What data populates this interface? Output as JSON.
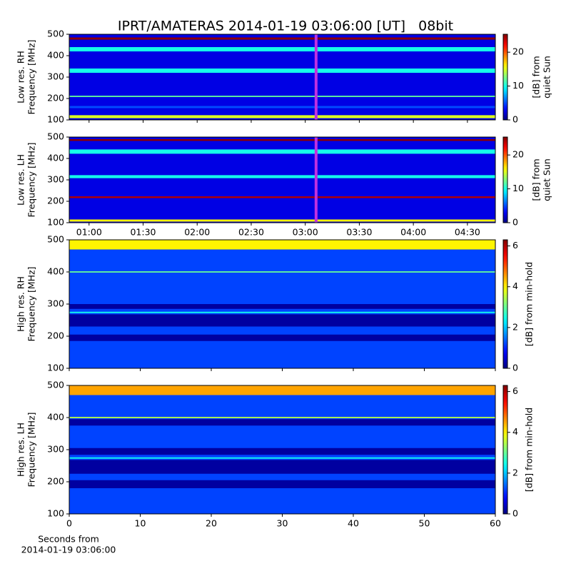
{
  "chart_data": [
    {
      "type": "heatmap",
      "title": "IPRT/AMATERAS 2014-01-19 03:06:00 [UT]   08bit",
      "ylabel": [
        "Low res. RH",
        "Frequency [MHz]"
      ],
      "ylim": [
        100,
        500
      ],
      "yticks": [
        100,
        200,
        300,
        400,
        500
      ],
      "xlim": [
        49,
        285.5
      ],
      "xticks": [
        60,
        90,
        120,
        150,
        180,
        210,
        240,
        270
      ],
      "xtick_labels": false,
      "marker_x": 186,
      "marker_color": "#c030e0",
      "background_level": 2.5,
      "bands": [
        {
          "from": 475,
          "to": 485,
          "level": 25
        },
        {
          "from": 420,
          "to": 440,
          "level": 10
        },
        {
          "from": 320,
          "to": 340,
          "level": 10
        },
        {
          "from": 207,
          "to": 213,
          "level": 12
        },
        {
          "from": 155,
          "to": 165,
          "level": 5
        },
        {
          "from": 108,
          "to": 122,
          "level": 15
        }
      ],
      "clim": [
        0,
        25.3
      ],
      "cticks": [
        0,
        10,
        20
      ],
      "clabel": [
        "[dB] from",
        "quiet Sun"
      ]
    },
    {
      "type": "heatmap",
      "ylabel": [
        "Low res. LH",
        "Frequency [MHz]"
      ],
      "ylim": [
        100,
        500
      ],
      "yticks": [
        100,
        200,
        300,
        400,
        500
      ],
      "xlim": [
        49,
        285.5
      ],
      "xticks": [
        {
          "value": 60,
          "label": "01:00"
        },
        {
          "value": 90,
          "label": "01:30"
        },
        {
          "value": 120,
          "label": "02:00"
        },
        {
          "value": 150,
          "label": "02:30"
        },
        {
          "value": 180,
          "label": "03:00"
        },
        {
          "value": 210,
          "label": "03:30"
        },
        {
          "value": 240,
          "label": "04:00"
        },
        {
          "value": 270,
          "label": "04:30"
        }
      ],
      "marker_x": 186,
      "marker_color": "#c030e0",
      "background_level": 2.5,
      "bands": [
        {
          "from": 482,
          "to": 490,
          "level": 25
        },
        {
          "from": 422,
          "to": 442,
          "level": 10
        },
        {
          "from": 308,
          "to": 322,
          "level": 10
        },
        {
          "from": 215,
          "to": 223,
          "level": 24
        },
        {
          "from": 105,
          "to": 115,
          "level": 16
        }
      ],
      "clim": [
        0,
        25.3
      ],
      "cticks": [
        0,
        10,
        20
      ],
      "clabel": [
        "[dB] from",
        "quiet Sun"
      ]
    },
    {
      "type": "heatmap",
      "ylabel": [
        "High res. RH",
        "Frequency [MHz]"
      ],
      "ylim": [
        100,
        500
      ],
      "yticks": [
        100,
        200,
        300,
        400,
        500
      ],
      "xlim": [
        0,
        60
      ],
      "xticks": [
        0,
        10,
        20,
        30,
        40,
        50,
        60
      ],
      "xtick_labels": false,
      "background_level": 1.2,
      "bands": [
        {
          "from": 470,
          "to": 500,
          "level": 4
        },
        {
          "from": 285,
          "to": 300,
          "level": 0.2
        },
        {
          "from": 230,
          "to": 268,
          "level": 0.2
        },
        {
          "from": 272,
          "to": 276,
          "level": 2.5
        },
        {
          "from": 185,
          "to": 205,
          "level": 0.2
        },
        {
          "from": 398,
          "to": 402,
          "level": 3
        }
      ],
      "clim": [
        0,
        6.3
      ],
      "cticks": [
        0,
        2,
        4,
        6
      ],
      "clabel": [
        "[dB] from min-hold"
      ]
    },
    {
      "type": "heatmap",
      "ylabel": [
        "High res. LH",
        "Frequency [MHz]"
      ],
      "ylim": [
        100,
        500
      ],
      "yticks": [
        100,
        200,
        300,
        400,
        500
      ],
      "xlim": [
        0,
        60
      ],
      "xticks": [
        0,
        10,
        20,
        30,
        40,
        50,
        60
      ],
      "xlabel": [
        "Seconds from",
        "2014-01-19 03:06:00"
      ],
      "background_level": 1.2,
      "bands": [
        {
          "from": 470,
          "to": 500,
          "level": 4.5
        },
        {
          "from": 375,
          "to": 395,
          "level": 0.2
        },
        {
          "from": 284,
          "to": 305,
          "level": 0.2
        },
        {
          "from": 225,
          "to": 268,
          "level": 0.2
        },
        {
          "from": 272,
          "to": 276,
          "level": 2.5
        },
        {
          "from": 180,
          "to": 205,
          "level": 0.2
        },
        {
          "from": 398,
          "to": 402,
          "level": 3.5
        }
      ],
      "clim": [
        0,
        6.3
      ],
      "cticks": [
        0,
        2,
        4,
        6
      ],
      "clabel": [
        "[dB] from min-hold"
      ]
    }
  ]
}
